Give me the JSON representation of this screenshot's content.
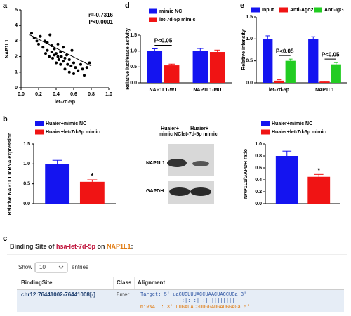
{
  "panel_labels": [
    "a",
    "d",
    "e",
    "b",
    "c"
  ],
  "chart_data": [
    {
      "type": "scatter",
      "xlabel": "let-7d-5p",
      "ylabel": "NAP1L1",
      "color": "#000000",
      "x": [
        0.12,
        0.15,
        0.18,
        0.2,
        0.22,
        0.25,
        0.27,
        0.28,
        0.3,
        0.3,
        0.32,
        0.33,
        0.35,
        0.35,
        0.36,
        0.38,
        0.38,
        0.4,
        0.4,
        0.42,
        0.42,
        0.43,
        0.45,
        0.45,
        0.46,
        0.48,
        0.48,
        0.5,
        0.5,
        0.52,
        0.53,
        0.55,
        0.55,
        0.57,
        0.58,
        0.6,
        0.6,
        0.62,
        0.65,
        0.68,
        0.7,
        0.72,
        0.75,
        0.78
      ],
      "values": [
        3.5,
        3.2,
        3.0,
        2.8,
        3.3,
        2.6,
        3.0,
        2.2,
        2.9,
        2.4,
        2.0,
        3.4,
        2.7,
        2.3,
        1.9,
        2.5,
        2.1,
        2.2,
        1.6,
        2.8,
        2.0,
        1.8,
        2.3,
        1.5,
        2.0,
        1.7,
        2.6,
        1.9,
        1.2,
        2.1,
        1.5,
        1.8,
        1.0,
        1.4,
        2.4,
        1.6,
        0.9,
        1.3,
        1.1,
        1.5,
        1.2,
        0.8,
        1.3,
        1.6
      ],
      "trend": {
        "x": [
          0.1,
          0.8
        ],
        "values": [
          3.4,
          1.4
        ]
      },
      "xlim": [
        0,
        1
      ],
      "xticks": [
        {
          "value": 0,
          "label": "0.0"
        },
        {
          "value": 0.2,
          "label": "0.2"
        },
        {
          "value": 0.4,
          "label": "0.4"
        },
        {
          "value": 0.6,
          "label": "0.6"
        },
        {
          "value": 0.8,
          "label": "0.8"
        },
        {
          "value": 1,
          "label": "1.0"
        }
      ],
      "ylim": [
        0,
        5
      ],
      "yticks": [
        0,
        1,
        2,
        3,
        4,
        5
      ],
      "annotations": [
        "r=-0.7316",
        "P<0.0001"
      ]
    },
    {
      "type": "bar",
      "ylabel": "Relative luciferase activity",
      "categories": [
        "NAP1L1-WT",
        "NAP1L1-MUT"
      ],
      "series": [
        {
          "name": "mimic NC",
          "color": "#1414f0",
          "values": [
            1.0,
            1.0
          ],
          "errors": [
            0.07,
            0.08
          ]
        },
        {
          "name": "let-7d-5p mimic",
          "color": "#f01414",
          "values": [
            0.55,
            0.97
          ],
          "errors": [
            0.04,
            0.06
          ]
        }
      ],
      "ylim": [
        0,
        1.5
      ],
      "yticks": [
        {
          "value": 0,
          "label": "0.0"
        },
        {
          "value": 0.5,
          "label": "0.5"
        },
        {
          "value": 1,
          "label": "1.0"
        },
        {
          "value": 1.5,
          "label": "1.5"
        }
      ],
      "annotations": [
        "P<0.05"
      ]
    },
    {
      "type": "bar",
      "ylabel": "Relative intensity",
      "categories": [
        "let-7d-5p",
        "NAP1L1"
      ],
      "series": [
        {
          "name": "Input",
          "color": "#1414f0",
          "values": [
            1.0,
            1.0
          ],
          "errors": [
            0.07,
            0.05
          ]
        },
        {
          "name": "Anti-Ago2",
          "color": "#f01414",
          "values": [
            0.05,
            0.03
          ],
          "errors": [
            0.02,
            0.01
          ]
        },
        {
          "name": "Anti-IgG",
          "color": "#22cc22",
          "values": [
            0.5,
            0.42
          ],
          "errors": [
            0.04,
            0.04
          ]
        }
      ],
      "ylim": [
        0,
        1.5
      ],
      "yticks": [
        {
          "value": 0,
          "label": "0.0"
        },
        {
          "value": 0.5,
          "label": "0.5"
        },
        {
          "value": 1,
          "label": "1.0"
        },
        {
          "value": 1.5,
          "label": "1.5"
        }
      ],
      "annotations": [
        "P<0.05",
        "P<0.05"
      ]
    },
    {
      "type": "bar",
      "ylabel": "Relative NAP1L1 mRNA expression",
      "categories": [
        null
      ],
      "series": [
        {
          "name": "Huaier+mimic NC",
          "color": "#1414f0",
          "values": [
            1.0
          ],
          "errors": [
            0.09
          ]
        },
        {
          "name": "Huaier+let-7d-5p mimic",
          "color": "#f01414",
          "values": [
            0.55
          ],
          "errors": [
            0.05
          ]
        }
      ],
      "ylim": [
        0,
        1.5
      ],
      "yticks": [
        {
          "value": 0,
          "label": "0.0"
        },
        {
          "value": 0.5,
          "label": "0.5"
        },
        {
          "value": 1,
          "label": "1.0"
        },
        {
          "value": 1.5,
          "label": "1.5"
        }
      ],
      "annotations": [
        "*"
      ]
    },
    {
      "type": "bar",
      "ylabel": "NAP1L1/GAPDH ratio",
      "categories": [
        null
      ],
      "series": [
        {
          "name": "Huaier+mimic NC",
          "color": "#1414f0",
          "values": [
            0.8
          ],
          "errors": [
            0.08
          ]
        },
        {
          "name": "Huaier+let-7d-5p mimic",
          "color": "#f01414",
          "values": [
            0.45
          ],
          "errors": [
            0.04
          ]
        }
      ],
      "ylim": [
        0,
        1
      ],
      "yticks": [
        {
          "value": 0,
          "label": "0.0"
        },
        {
          "value": 0.2,
          "label": "0.2"
        },
        {
          "value": 0.4,
          "label": "0.4"
        },
        {
          "value": 0.6,
          "label": "0.6"
        },
        {
          "value": 0.8,
          "label": "0.8"
        },
        {
          "value": 1,
          "label": "1.0"
        }
      ],
      "annotations": [
        "*"
      ]
    }
  ],
  "blot": {
    "lanes": [
      [
        "Huaier+",
        "mimic NC"
      ],
      [
        "Huaier+",
        "let-7d-5p mimic"
      ]
    ],
    "rows": [
      "NAP1L1",
      "GAPDH"
    ]
  },
  "binding_table": {
    "title": [
      "Binding Site of ",
      "hsa-let-7d-5p",
      " on ",
      "NAP1L1",
      ":"
    ],
    "show_label": "Show",
    "page_size": "10",
    "entries_label": "entries",
    "columns": [
      "BindingSite",
      "Class",
      "Alignment"
    ],
    "rows": [
      [
        "chr12:76441002-76441008[-]",
        "8mer",
        [
          "Target: 5' uaCUGUUUACCUAACUACCUCa 3'",
          "             |:|: :| :| ||||||||",
          "miRNA  : 3' uuGAUACGUUGGAUGAUGGAGa 5'"
        ]
      ]
    ]
  }
}
